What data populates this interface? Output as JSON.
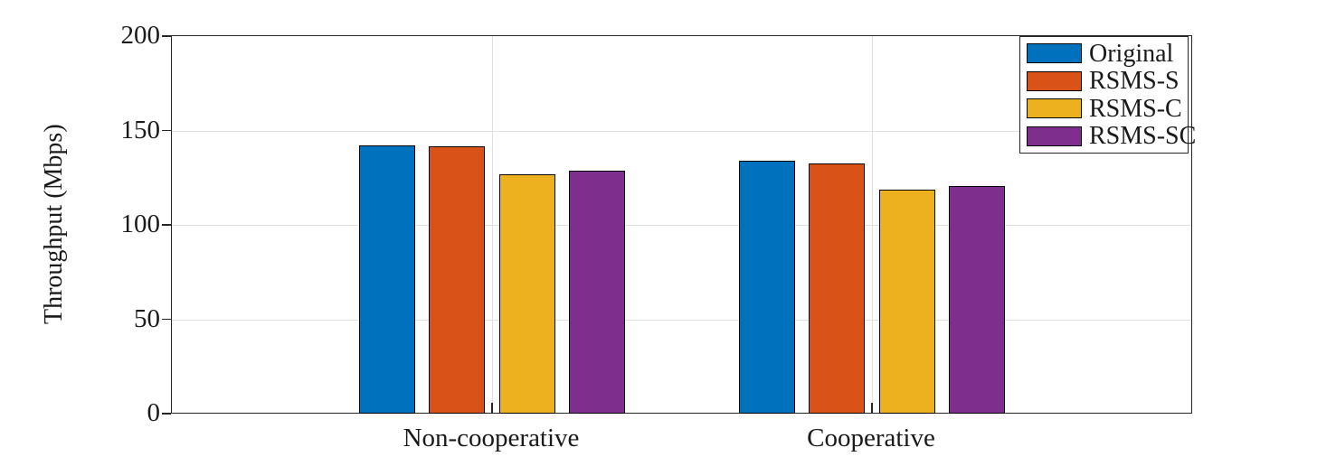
{
  "figure": {
    "background": "#ffffff",
    "axis_color": "#262626",
    "grid_color": "#e0e0e0",
    "text_color": "#1a1a1a"
  },
  "chart_data": {
    "type": "bar",
    "title": "",
    "xlabel": "",
    "ylabel": "Throughput (Mbps)",
    "categories": [
      "Non-cooperative",
      "Cooperative"
    ],
    "series": [
      {
        "name": "Original",
        "color": "#0072BD",
        "values": [
          142.2,
          133.9
        ]
      },
      {
        "name": "RSMS-S",
        "color": "#D95319",
        "values": [
          141.7,
          132.7
        ]
      },
      {
        "name": "RSMS-C",
        "color": "#EDB120",
        "values": [
          126.6,
          118.6
        ]
      },
      {
        "name": "RSMS-SC",
        "color": "#7E2F8E",
        "values": [
          128.9,
          120.7
        ]
      }
    ],
    "ylim": [
      0,
      200
    ],
    "yticks": [
      0,
      50,
      100,
      150,
      200
    ],
    "grid": true,
    "legend_position": "top-right-inside"
  }
}
